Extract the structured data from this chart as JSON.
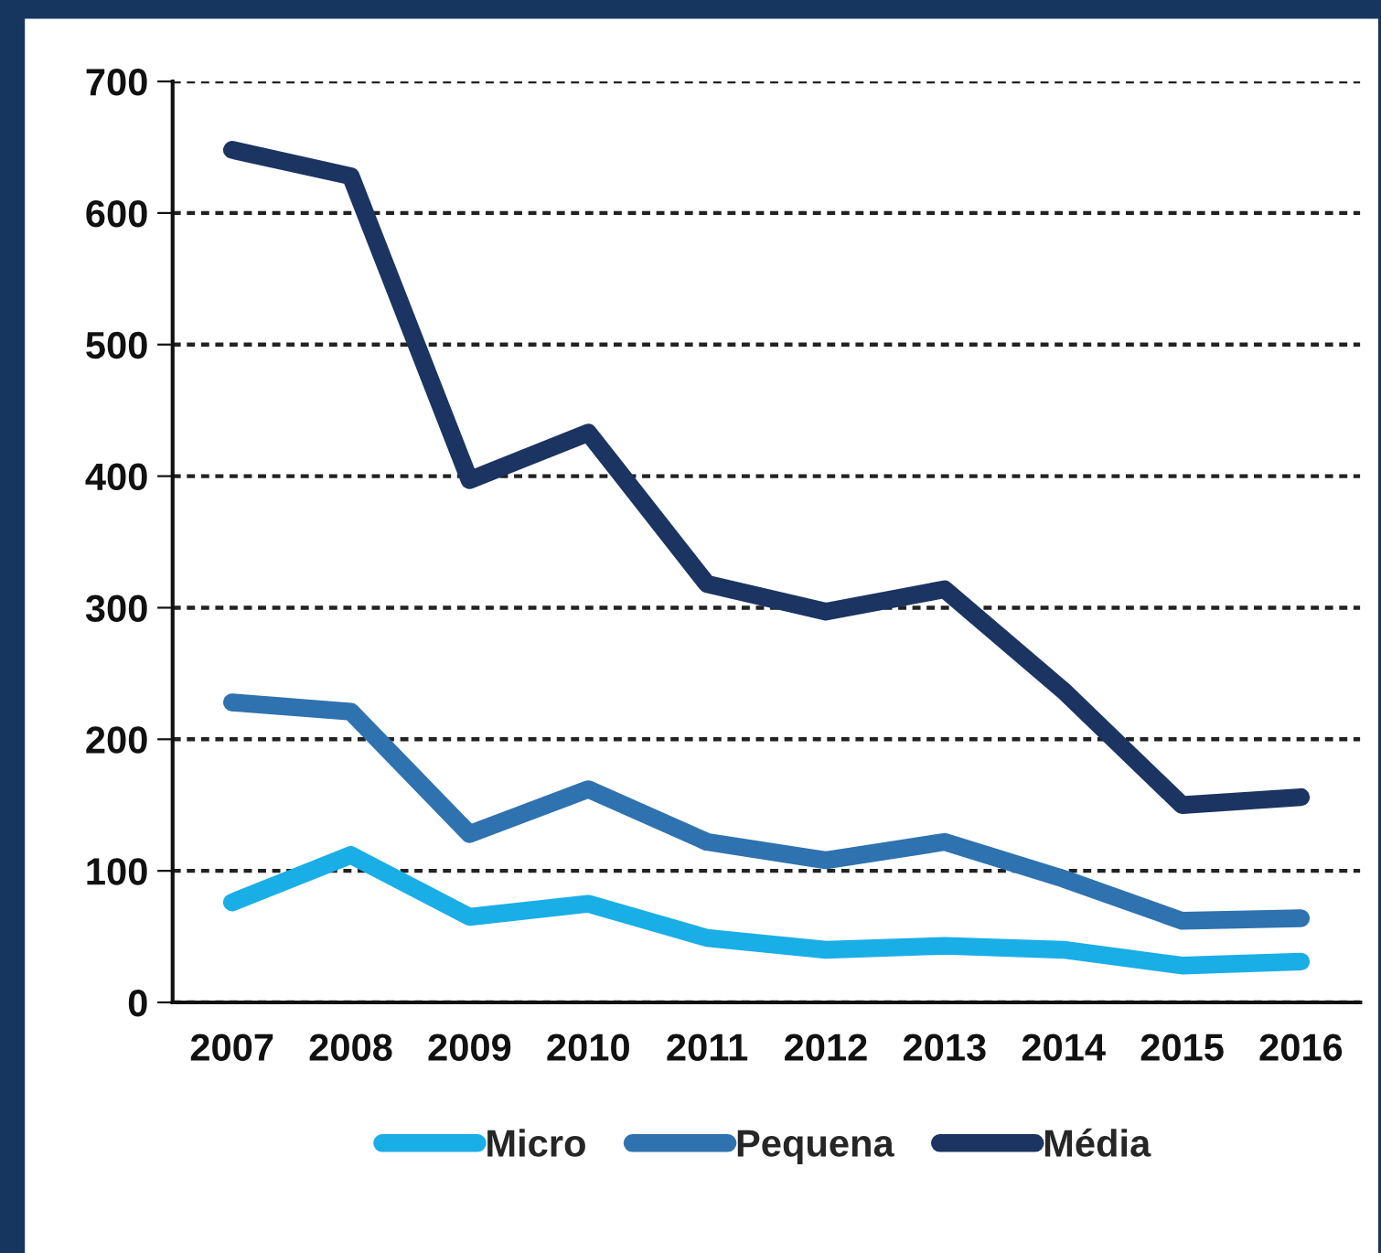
{
  "chart_data": {
    "type": "line",
    "categories": [
      "2007",
      "2008",
      "2009",
      "2010",
      "2011",
      "2012",
      "2013",
      "2014",
      "2015",
      "2016"
    ],
    "series": [
      {
        "name": "Micro",
        "color": "#1aaee6",
        "values": [
          76,
          112,
          65,
          75,
          49,
          40,
          43,
          40,
          28,
          31
        ]
      },
      {
        "name": "Pequena",
        "color": "#2e72b0",
        "values": [
          228,
          221,
          128,
          162,
          122,
          108,
          122,
          94,
          62,
          64
        ]
      },
      {
        "name": "Média",
        "color": "#1b3461",
        "values": [
          648,
          628,
          397,
          433,
          318,
          297,
          314,
          237,
          150,
          156
        ]
      }
    ],
    "ylim": [
      0,
      700
    ],
    "yticks": [
      0,
      100,
      200,
      300,
      400,
      500,
      600,
      700
    ],
    "grid": "y",
    "legend": "bottom",
    "marker": "none",
    "line_style": "solid"
  }
}
